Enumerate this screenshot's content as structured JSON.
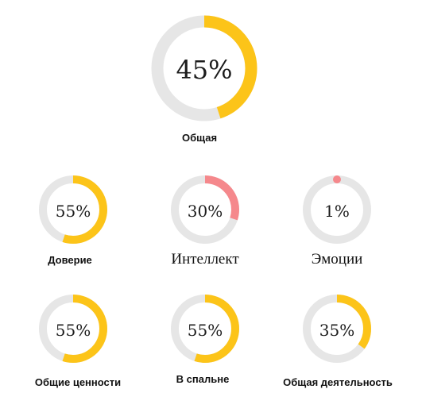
{
  "colors": {
    "track": "#e6e6e6",
    "yellow": "#fcc419",
    "red": "#f5888c"
  },
  "gauges": {
    "overall": {
      "value_text": "45%",
      "fraction": 0.45,
      "color": "#fcc419",
      "label": "Общая"
    },
    "trust": {
      "value_text": "55%",
      "fraction": 0.55,
      "color": "#fcc419",
      "label": "Доверие"
    },
    "intellect": {
      "value_text": "30%",
      "fraction": 0.3,
      "color": "#f5888c",
      "label": "Интеллект"
    },
    "emotions": {
      "value_text": "1%",
      "fraction": 0.01,
      "color": "#f5888c",
      "label": "Эмоции"
    },
    "values": {
      "value_text": "55%",
      "fraction": 0.55,
      "color": "#fcc419",
      "label": "Общие ценности"
    },
    "bedroom": {
      "value_text": "55%",
      "fraction": 0.55,
      "color": "#fcc419",
      "label": "В спальне"
    },
    "activity": {
      "value_text": "35%",
      "fraction": 0.35,
      "color": "#fcc419",
      "label": "Общая деятельность"
    }
  }
}
